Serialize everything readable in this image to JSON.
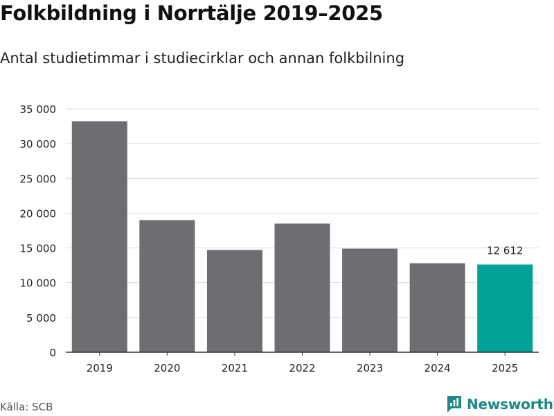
{
  "header": {
    "title": "Folkbildning i Norrtälje 2019–2025",
    "subtitle": "Antal studietimmar i studiecirklar och annan folkbilning"
  },
  "footer": {
    "source": "Källa: SCB",
    "brand": "Newsworthy"
  },
  "colors": {
    "bar": "#6e6d72",
    "highlight": "#00a196",
    "grid": "#d9d9d9",
    "axis": "#333333",
    "brand": "#1f8a86"
  },
  "chart_data": {
    "type": "bar",
    "title": "Folkbildning i Norrtälje 2019–2025",
    "subtitle": "Antal studietimmar i studiecirklar och annan folkbilning",
    "categories": [
      "2019",
      "2020",
      "2021",
      "2022",
      "2023",
      "2024",
      "2025"
    ],
    "values": [
      33200,
      19000,
      14700,
      18500,
      14900,
      12800,
      12612
    ],
    "highlight_index": 6,
    "data_labels": [
      {
        "index": 6,
        "text": "12 612"
      }
    ],
    "y_ticks": [
      0,
      5000,
      10000,
      15000,
      20000,
      25000,
      30000,
      35000
    ],
    "y_tick_labels": [
      "0",
      "5 000",
      "10 000",
      "15 000",
      "20 000",
      "25 000",
      "30 000",
      "35 000"
    ],
    "ylim": [
      0,
      35000
    ],
    "xlabel": "",
    "ylabel": "",
    "grid": true
  }
}
